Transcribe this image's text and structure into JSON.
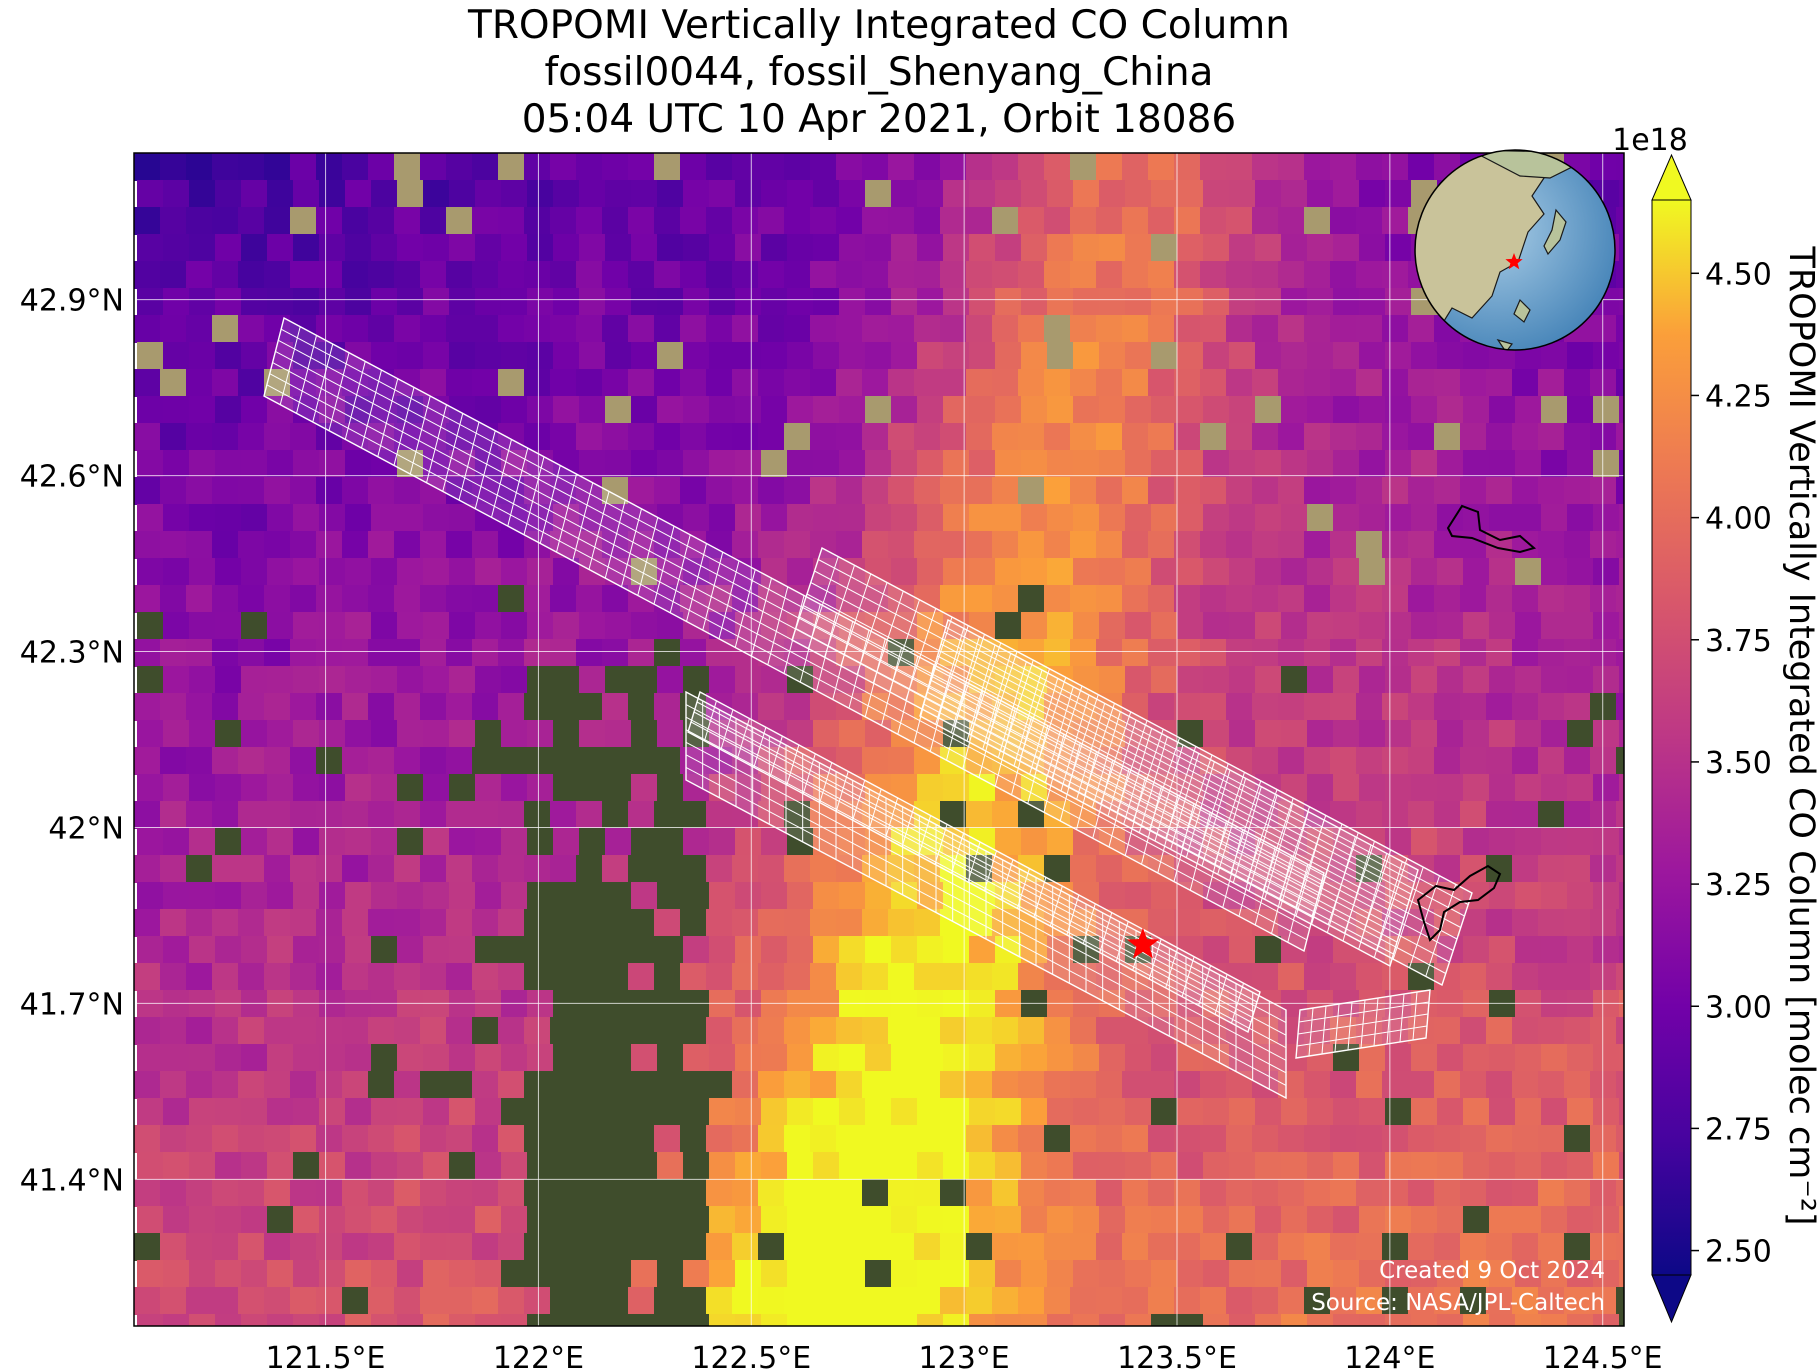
{
  "title": {
    "line1": "TROPOMI Vertically Integrated CO Column",
    "line2": "fossil0044, fossil_Shenyang_China",
    "line3": "05:04 UTC 10 Apr 2021, Orbit 18086"
  },
  "credits": {
    "created": "Created 9 Oct 2024",
    "source": "Source: NASA/JPL-Caltech"
  },
  "colorbar": {
    "label": "TROPOMI Vertically Integrated CO Column [molec cm⁻²]",
    "multiplier": "1e18",
    "colormap": "plasma",
    "vmin": 2.45,
    "vmax": 4.65,
    "extend": "both",
    "ticks": [
      {
        "value": 2.5,
        "label": "2.50"
      },
      {
        "value": 2.75,
        "label": "2.75"
      },
      {
        "value": 3.0,
        "label": "3.00"
      },
      {
        "value": 3.25,
        "label": "3.25"
      },
      {
        "value": 3.5,
        "label": "3.50"
      },
      {
        "value": 3.75,
        "label": "3.75"
      },
      {
        "value": 4.0,
        "label": "4.00"
      },
      {
        "value": 4.25,
        "label": "4.25"
      },
      {
        "value": 4.5,
        "label": "4.50"
      }
    ]
  },
  "map": {
    "lon_range": [
      121.05,
      124.55
    ],
    "lat_range": [
      41.15,
      43.15
    ],
    "lon_ticks": [
      {
        "value": 121.5,
        "label": "121.5°E"
      },
      {
        "value": 122.0,
        "label": "122°E"
      },
      {
        "value": 122.5,
        "label": "122.5°E"
      },
      {
        "value": 123.0,
        "label": "123°E"
      },
      {
        "value": 123.5,
        "label": "123.5°E"
      },
      {
        "value": 124.0,
        "label": "124°E"
      },
      {
        "value": 124.5,
        "label": "124.5°E"
      }
    ],
    "lat_ticks": [
      {
        "value": 42.9,
        "label": "42.9°N"
      },
      {
        "value": 42.6,
        "label": "42.6°N"
      },
      {
        "value": 42.3,
        "label": "42.3°N"
      },
      {
        "value": 42.0,
        "label": "42°N"
      },
      {
        "value": 41.7,
        "label": "41.7°N"
      },
      {
        "value": 41.4,
        "label": "41.4°N"
      }
    ],
    "gridlines": true,
    "target": {
      "name": "fossil_Shenyang_China",
      "lon": 123.42,
      "lat": 41.8,
      "color": "#ff0000"
    },
    "inset_globe": "top-right",
    "colors": {
      "grid": "#ffffff",
      "target_marker": "#ff0000",
      "footprints": "#ffffff",
      "coastline": "#000000"
    }
  }
}
